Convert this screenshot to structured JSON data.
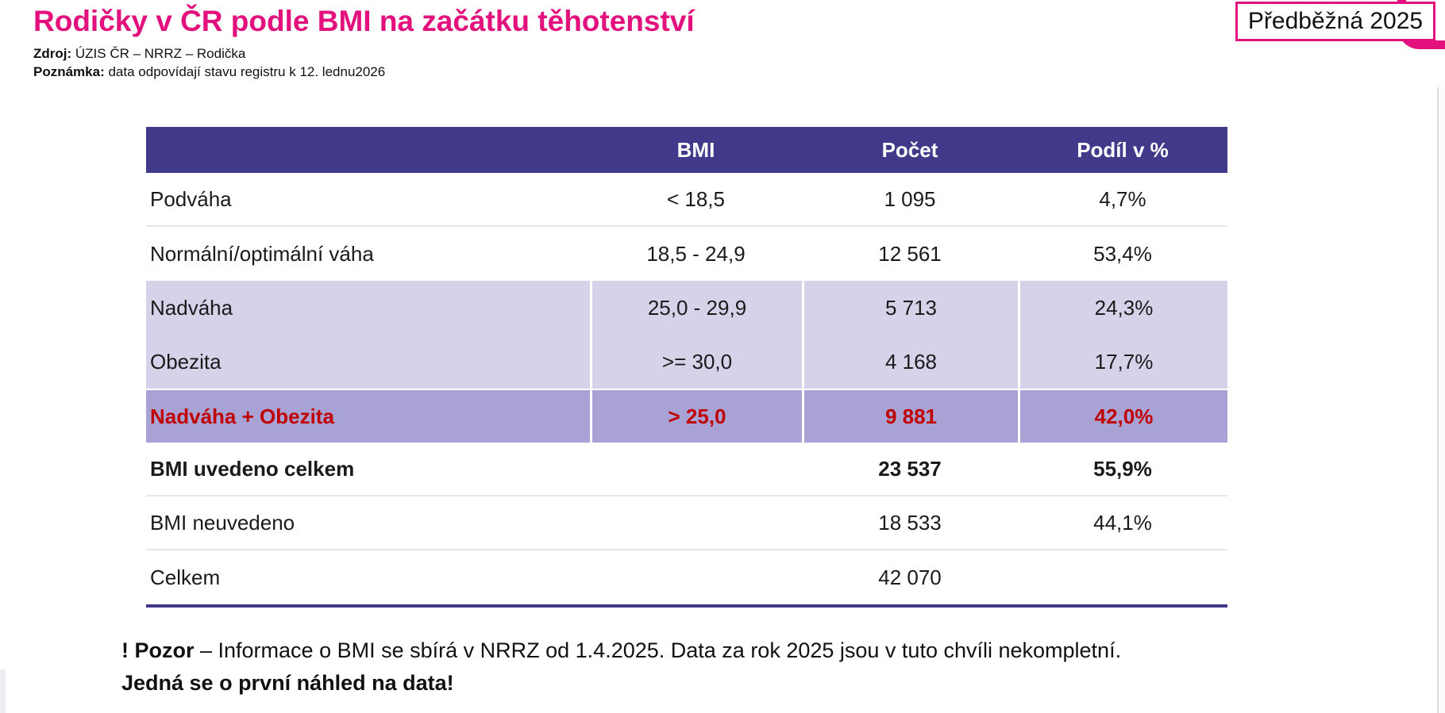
{
  "header": {
    "title": "Rodičky v ČR podle BMI na začátku těhotenství",
    "source_label": "Zdroj:",
    "source_value": " ÚZIS ČR – NRRZ – Rodička",
    "note_label": "Poznámka:",
    "note_value": " data odpovídají stavu registru k 12. lednu2026",
    "badge": "Předběžná 2025"
  },
  "table": {
    "columns": [
      "",
      "BMI",
      "Počet",
      "Podíl v %"
    ],
    "rows": [
      {
        "category": "Podváha",
        "bmi": "< 18,5",
        "count": "1 095",
        "share": "4,7%",
        "style": "plain",
        "separator": true
      },
      {
        "category": "Normální/optimální váha",
        "bmi": "18,5 - 24,9",
        "count": "12 561",
        "share": "53,4%",
        "style": "plain",
        "separator": false
      },
      {
        "category": "Nadváha",
        "bmi": "25,0 - 29,9",
        "count": "5 713",
        "share": "24,3%",
        "style": "light-purple",
        "separator": false
      },
      {
        "category": "Obezita",
        "bmi": ">= 30,0",
        "count": "4 168",
        "share": "17,7%",
        "style": "light-purple",
        "separator": false
      },
      {
        "category": "Nadváha + Obezita",
        "bmi": "> 25,0",
        "count": "9 881",
        "share": "42,0%",
        "style": "dark-purple-red",
        "separator": false
      },
      {
        "category": "BMI uvedeno celkem",
        "bmi": "",
        "count": "23 537",
        "share": "55,9%",
        "style": "bold",
        "separator": true
      },
      {
        "category": "BMI neuvedeno",
        "bmi": "",
        "count": "18 533",
        "share": "44,1%",
        "style": "plain",
        "separator": true
      },
      {
        "category": "Celkem",
        "bmi": "",
        "count": "42 070",
        "share": "",
        "style": "plain",
        "separator": false
      }
    ]
  },
  "footer": {
    "warning_bold": "! Pozor",
    "warning_rest": " – Informace o BMI se sbírá v NRRZ od 1.4.2025. Data za rok 2025 jsou v tuto chvíli nekompletní.",
    "line2": "Jedná se o první náhled na data!"
  },
  "colors": {
    "title_pink": "#E3117E",
    "badge_border": "#E3117E",
    "table_header_bg": "#413A8B",
    "row_light_bg": "#D5D2EA",
    "row_dark_bg": "#A9A2D5",
    "highlight_text_red": "#C00000",
    "table_bottom_border": "#413A8B"
  }
}
